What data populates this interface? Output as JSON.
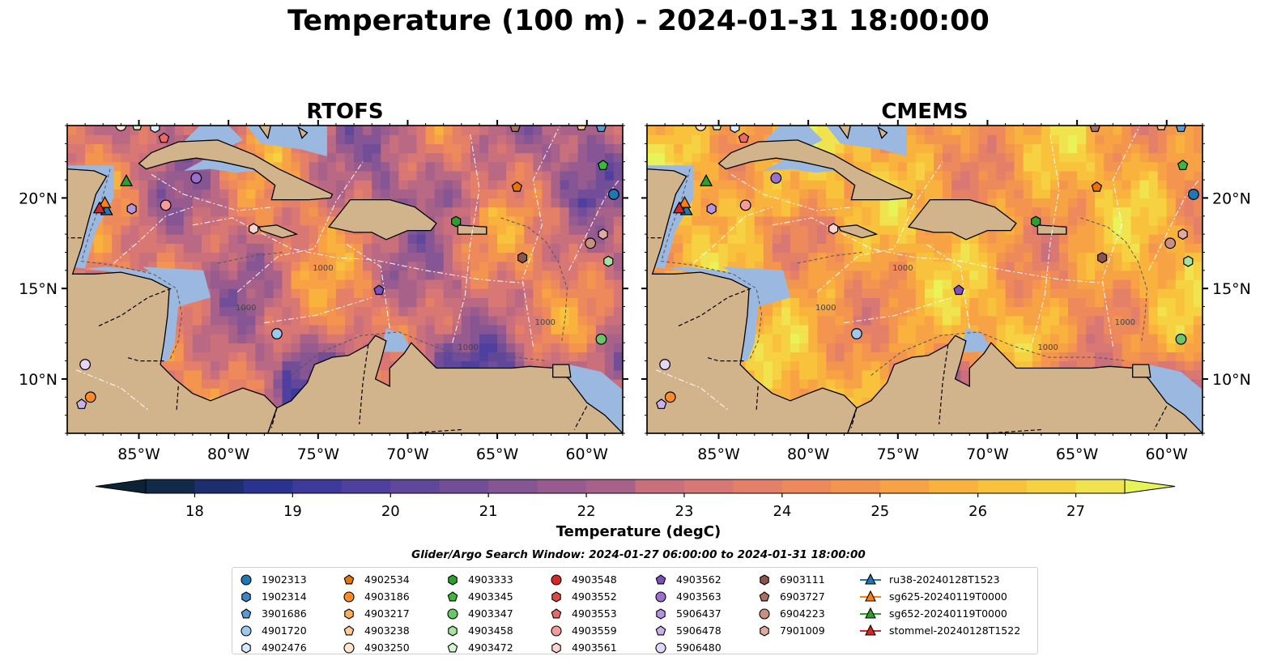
{
  "figure": {
    "title": "Temperature (100 m) - 2024-01-31 18:00:00",
    "colorbar_label": "Temperature (degC)",
    "search_window": "Glider/Argo Search Window: 2024-01-27 06:00:00 to 2024-01-31 18:00:00"
  },
  "colors": {
    "land": "#d2b48c",
    "shelf": "#9ab8e0",
    "colormap": [
      "#0b2335",
      "#112a4a",
      "#1c2e6e",
      "#2a3490",
      "#3c3a9c",
      "#4f3f9e",
      "#61479c",
      "#734e98",
      "#855594",
      "#975b8f",
      "#a8628a",
      "#b96983",
      "#c9707c",
      "#d87773",
      "#e47f68",
      "#ee895c",
      "#f4954f",
      "#f7a345",
      "#f9b23d",
      "#f8c23c",
      "#f6d243",
      "#f0e34f",
      "#e8f35a"
    ]
  },
  "chart_data": [
    {
      "type": "heatmap",
      "title": "RTOFS",
      "variable": "temperature at 100 m",
      "xlim": [
        -89,
        -58
      ],
      "ylim": [
        7,
        24
      ],
      "xticks": [
        "85°W",
        "80°W",
        "75°W",
        "70°W",
        "65°W",
        "60°W"
      ],
      "yticks": [
        "10°N",
        "15°N",
        "20°N"
      ],
      "ytick_side": "left",
      "contour_label": "1000",
      "temperature_range": [
        17.9,
        26.0
      ]
    },
    {
      "type": "heatmap",
      "title": "CMEMS",
      "variable": "temperature at 100 m",
      "xlim": [
        -89,
        -58
      ],
      "ylim": [
        7,
        24
      ],
      "xticks": [
        "85°W",
        "80°W",
        "75°W",
        "70°W",
        "65°W",
        "60°W"
      ],
      "yticks": [
        "10°N",
        "15°N",
        "20°N"
      ],
      "ytick_side": "right",
      "contour_label": "1000",
      "temperature_range": [
        17.9,
        27.2
      ]
    },
    {
      "type": "colorbar",
      "vmin": 17.5,
      "vmax": 27.5,
      "ticks": [
        "18",
        "19",
        "20",
        "21",
        "22",
        "23",
        "24",
        "25",
        "26",
        "27"
      ],
      "tick_values": [
        18,
        19,
        20,
        21,
        22,
        23,
        24,
        25,
        26,
        27
      ],
      "extend": "both"
    }
  ],
  "legend": {
    "columns": [
      [
        {
          "label": "1902313",
          "marker": "circle",
          "color": "#1f77b4"
        },
        {
          "label": "1902314",
          "marker": "hexagon",
          "color": "#3d85c6"
        },
        {
          "label": "3901686",
          "marker": "pentagon",
          "color": "#5a9bd5"
        },
        {
          "label": "4901720",
          "marker": "circle",
          "color": "#9ec9ef"
        },
        {
          "label": "4902476",
          "marker": "hexagon",
          "color": "#d6ebfb"
        }
      ],
      [
        {
          "label": "4902534",
          "marker": "pentagon",
          "color": "#e8740a"
        },
        {
          "label": "4903186",
          "marker": "circle",
          "color": "#ff8c28"
        },
        {
          "label": "4903217",
          "marker": "hexagon",
          "color": "#ffae5c"
        },
        {
          "label": "4903238",
          "marker": "pentagon",
          "color": "#ffcc99"
        },
        {
          "label": "4903250",
          "marker": "circle",
          "color": "#fde6d0"
        }
      ],
      [
        {
          "label": "4903333",
          "marker": "hexagon",
          "color": "#2ca02c"
        },
        {
          "label": "4903345",
          "marker": "pentagon",
          "color": "#3db83d"
        },
        {
          "label": "4903347",
          "marker": "circle",
          "color": "#66c966"
        },
        {
          "label": "4903458",
          "marker": "hexagon",
          "color": "#a6e3a0"
        },
        {
          "label": "4903472",
          "marker": "pentagon",
          "color": "#d4f5cf"
        }
      ],
      [
        {
          "label": "4903548",
          "marker": "circle",
          "color": "#d62728"
        },
        {
          "label": "4903552",
          "marker": "hexagon",
          "color": "#e04848"
        },
        {
          "label": "4903553",
          "marker": "pentagon",
          "color": "#ea6a6a"
        },
        {
          "label": "4903559",
          "marker": "circle",
          "color": "#f59c9a"
        },
        {
          "label": "4903561",
          "marker": "hexagon",
          "color": "#fcd4d2"
        }
      ],
      [
        {
          "label": "4903562",
          "marker": "pentagon",
          "color": "#7e4fbf"
        },
        {
          "label": "4903563",
          "marker": "circle",
          "color": "#9b6fd0"
        },
        {
          "label": "5906437",
          "marker": "hexagon",
          "color": "#b294e0"
        },
        {
          "label": "5906478",
          "marker": "pentagon",
          "color": "#c9b2ec"
        },
        {
          "label": "5906480",
          "marker": "circle",
          "color": "#e4d6f7"
        }
      ],
      [
        {
          "label": "6903111",
          "marker": "hexagon",
          "color": "#8c564b"
        },
        {
          "label": "6903727",
          "marker": "pentagon",
          "color": "#a8705f"
        },
        {
          "label": "6904223",
          "marker": "circle",
          "color": "#c98f7f"
        },
        {
          "label": "7901009",
          "marker": "hexagon",
          "color": "#e0aaa0"
        }
      ],
      [
        {
          "label": "ru38-20240128T1523",
          "marker": "triangle",
          "color": "#1f77b4"
        },
        {
          "label": "sg625-20240119T0000",
          "marker": "triangle",
          "color": "#ff7f0e"
        },
        {
          "label": "sg652-20240119T0000",
          "marker": "triangle",
          "color": "#2ca02c"
        },
        {
          "label": "stommel-20240128T1522",
          "marker": "triangle",
          "color": "#d62728"
        }
      ]
    ]
  },
  "floats": [
    {
      "id": "1902313",
      "marker": "circle",
      "color": "#1f77b4",
      "lon": -58.5,
      "lat": 20.2
    },
    {
      "id": "3901686",
      "marker": "pentagon",
      "color": "#5a9bd5",
      "lon": -59.2,
      "lat": 23.9
    },
    {
      "id": "4901720",
      "marker": "circle",
      "color": "#9ec9ef",
      "lon": -77.3,
      "lat": 12.5
    },
    {
      "id": "4902476",
      "marker": "hexagon",
      "color": "#d6ebfb",
      "lon": -84.1,
      "lat": 23.9
    },
    {
      "id": "4902534",
      "marker": "pentagon",
      "color": "#e8740a",
      "lon": -63.9,
      "lat": 20.6
    },
    {
      "id": "4903186",
      "marker": "circle",
      "color": "#ff8c28",
      "lon": -87.7,
      "lat": 9.0
    },
    {
      "id": "4903238",
      "marker": "pentagon",
      "color": "#ffcc99",
      "lon": -60.3,
      "lat": 24.0
    },
    {
      "id": "4903250",
      "marker": "circle",
      "color": "#fde6d0",
      "lon": -86.0,
      "lat": 24.0
    },
    {
      "id": "4903333",
      "marker": "hexagon",
      "color": "#2ca02c",
      "lon": -67.3,
      "lat": 18.7
    },
    {
      "id": "4903345",
      "marker": "pentagon",
      "color": "#3db83d",
      "lon": -59.1,
      "lat": 21.8
    },
    {
      "id": "4903347",
      "marker": "circle",
      "color": "#66c966",
      "lon": -59.2,
      "lat": 12.2
    },
    {
      "id": "4903458",
      "marker": "hexagon",
      "color": "#a6e3a0",
      "lon": -58.8,
      "lat": 16.5
    },
    {
      "id": "4903472",
      "marker": "pentagon",
      "color": "#d4f5cf",
      "lon": -85.1,
      "lat": 24.0
    },
    {
      "id": "4903553",
      "marker": "pentagon",
      "color": "#ea6a6a",
      "lon": -83.6,
      "lat": 23.3
    },
    {
      "id": "4903559",
      "marker": "circle",
      "color": "#f59c9a",
      "lon": -83.5,
      "lat": 19.6
    },
    {
      "id": "4903561",
      "marker": "hexagon",
      "color": "#fcd4d2",
      "lon": -78.6,
      "lat": 18.3
    },
    {
      "id": "4903562",
      "marker": "pentagon",
      "color": "#7e4fbf",
      "lon": -71.6,
      "lat": 14.9
    },
    {
      "id": "4903563",
      "marker": "circle",
      "color": "#9b6fd0",
      "lon": -81.8,
      "lat": 21.1
    },
    {
      "id": "5906437",
      "marker": "hexagon",
      "color": "#b294e0",
      "lon": -85.4,
      "lat": 19.4
    },
    {
      "id": "5906478",
      "marker": "pentagon",
      "color": "#c9b2ec",
      "lon": -88.2,
      "lat": 8.6
    },
    {
      "id": "5906480",
      "marker": "circle",
      "color": "#e4d6f7",
      "lon": -88.0,
      "lat": 10.8
    },
    {
      "id": "6903111",
      "marker": "hexagon",
      "color": "#8c564b",
      "lon": -63.6,
      "lat": 16.7
    },
    {
      "id": "6903727",
      "marker": "pentagon",
      "color": "#a8705f",
      "lon": -64.0,
      "lat": 23.9
    },
    {
      "id": "6904223",
      "marker": "circle",
      "color": "#c98f7f",
      "lon": -59.8,
      "lat": 17.5
    },
    {
      "id": "7901009",
      "marker": "hexagon",
      "color": "#e0aaa0",
      "lon": -59.1,
      "lat": 18.0
    }
  ],
  "gliders": [
    {
      "id": "ru38-20240128T1523",
      "color": "#1f77b4",
      "lon": -86.8,
      "lat": 19.3
    },
    {
      "id": "sg625-20240119T0000",
      "color": "#ff7f0e",
      "lon": -86.9,
      "lat": 19.7
    },
    {
      "id": "sg652-20240119T0000",
      "color": "#2ca02c",
      "lon": -85.7,
      "lat": 20.9
    },
    {
      "id": "stommel-20240128T1522",
      "color": "#d62728",
      "lon": -87.2,
      "lat": 19.4
    }
  ]
}
